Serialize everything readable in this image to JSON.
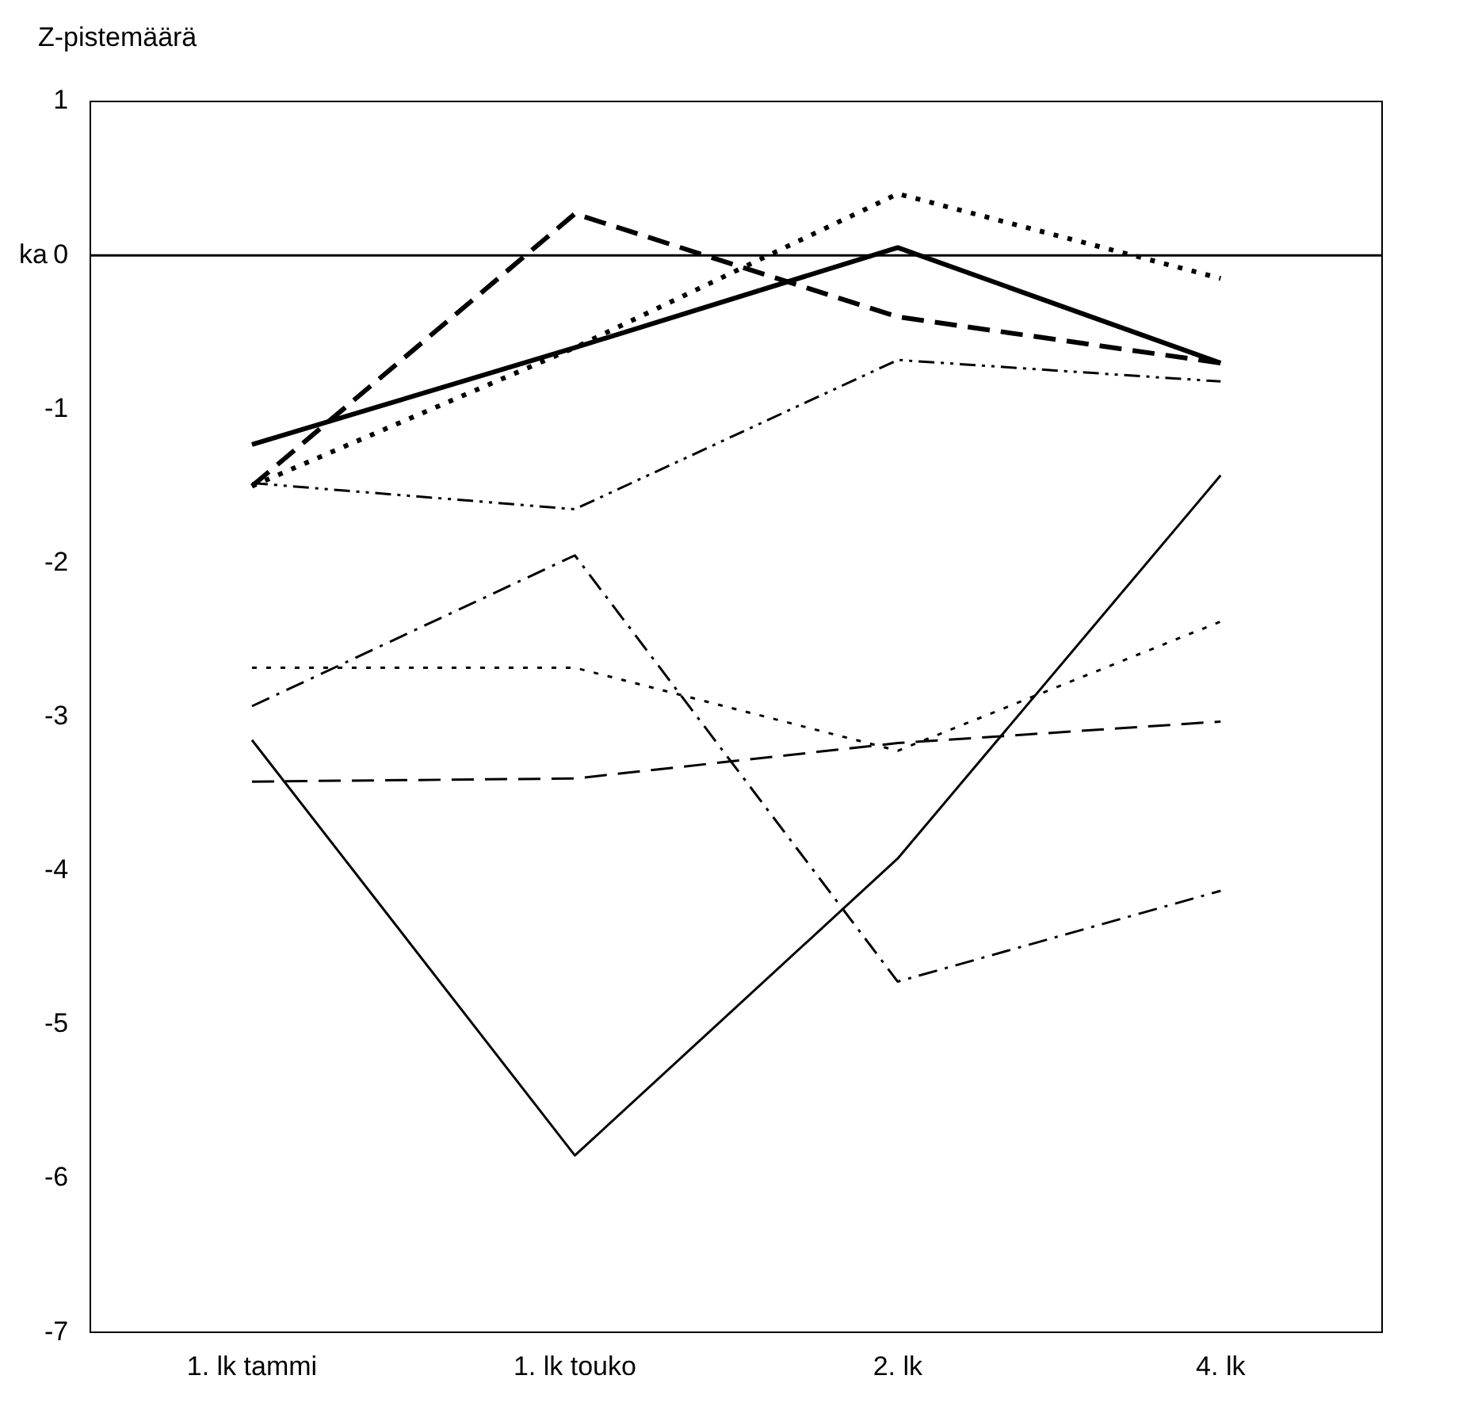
{
  "chart_data": {
    "type": "line",
    "ylabel": "Z-pistemäärä",
    "categories": [
      "1. lk tammi",
      "1. lk touko",
      "2. lk",
      "4. lk"
    ],
    "ylim": [
      -7,
      1
    ],
    "yticks": [
      -7,
      -6,
      -5,
      -4,
      -3,
      -2,
      -1,
      0,
      1
    ],
    "grid": false,
    "legend": false,
    "marker": "none",
    "ref_lines": [
      {
        "axis": "y",
        "value": 0,
        "label": "ka",
        "color": "#000000"
      }
    ],
    "series": [
      {
        "color": "#000000",
        "line_style": "solid",
        "values": [
          -1.23,
          -0.6,
          0.05,
          -0.7
        ]
      },
      {
        "color": "#000000",
        "line_style": "dashed",
        "values": [
          -1.5,
          0.27,
          -0.4,
          -0.7
        ]
      },
      {
        "color": "#000000",
        "line_style": "dotted",
        "values": [
          -1.5,
          -0.6,
          0.4,
          -0.15
        ]
      },
      {
        "color": "#000000",
        "line_style": "dashdotdot",
        "values": [
          -1.48,
          -1.65,
          -0.68,
          -0.82
        ]
      },
      {
        "color": "#000000",
        "line_style": "dashdot",
        "values": [
          -2.93,
          -1.95,
          -4.72,
          -4.13
        ]
      },
      {
        "color": "#000000",
        "line_style": "dotted",
        "values": [
          -2.68,
          -2.68,
          -3.22,
          -2.38
        ]
      },
      {
        "color": "#000000",
        "line_style": "dashed",
        "values": [
          -3.42,
          -3.4,
          -3.17,
          -3.03
        ]
      },
      {
        "color": "#000000",
        "line_style": "solid",
        "values": [
          -3.15,
          -5.85,
          -3.92,
          -1.43
        ]
      }
    ]
  }
}
